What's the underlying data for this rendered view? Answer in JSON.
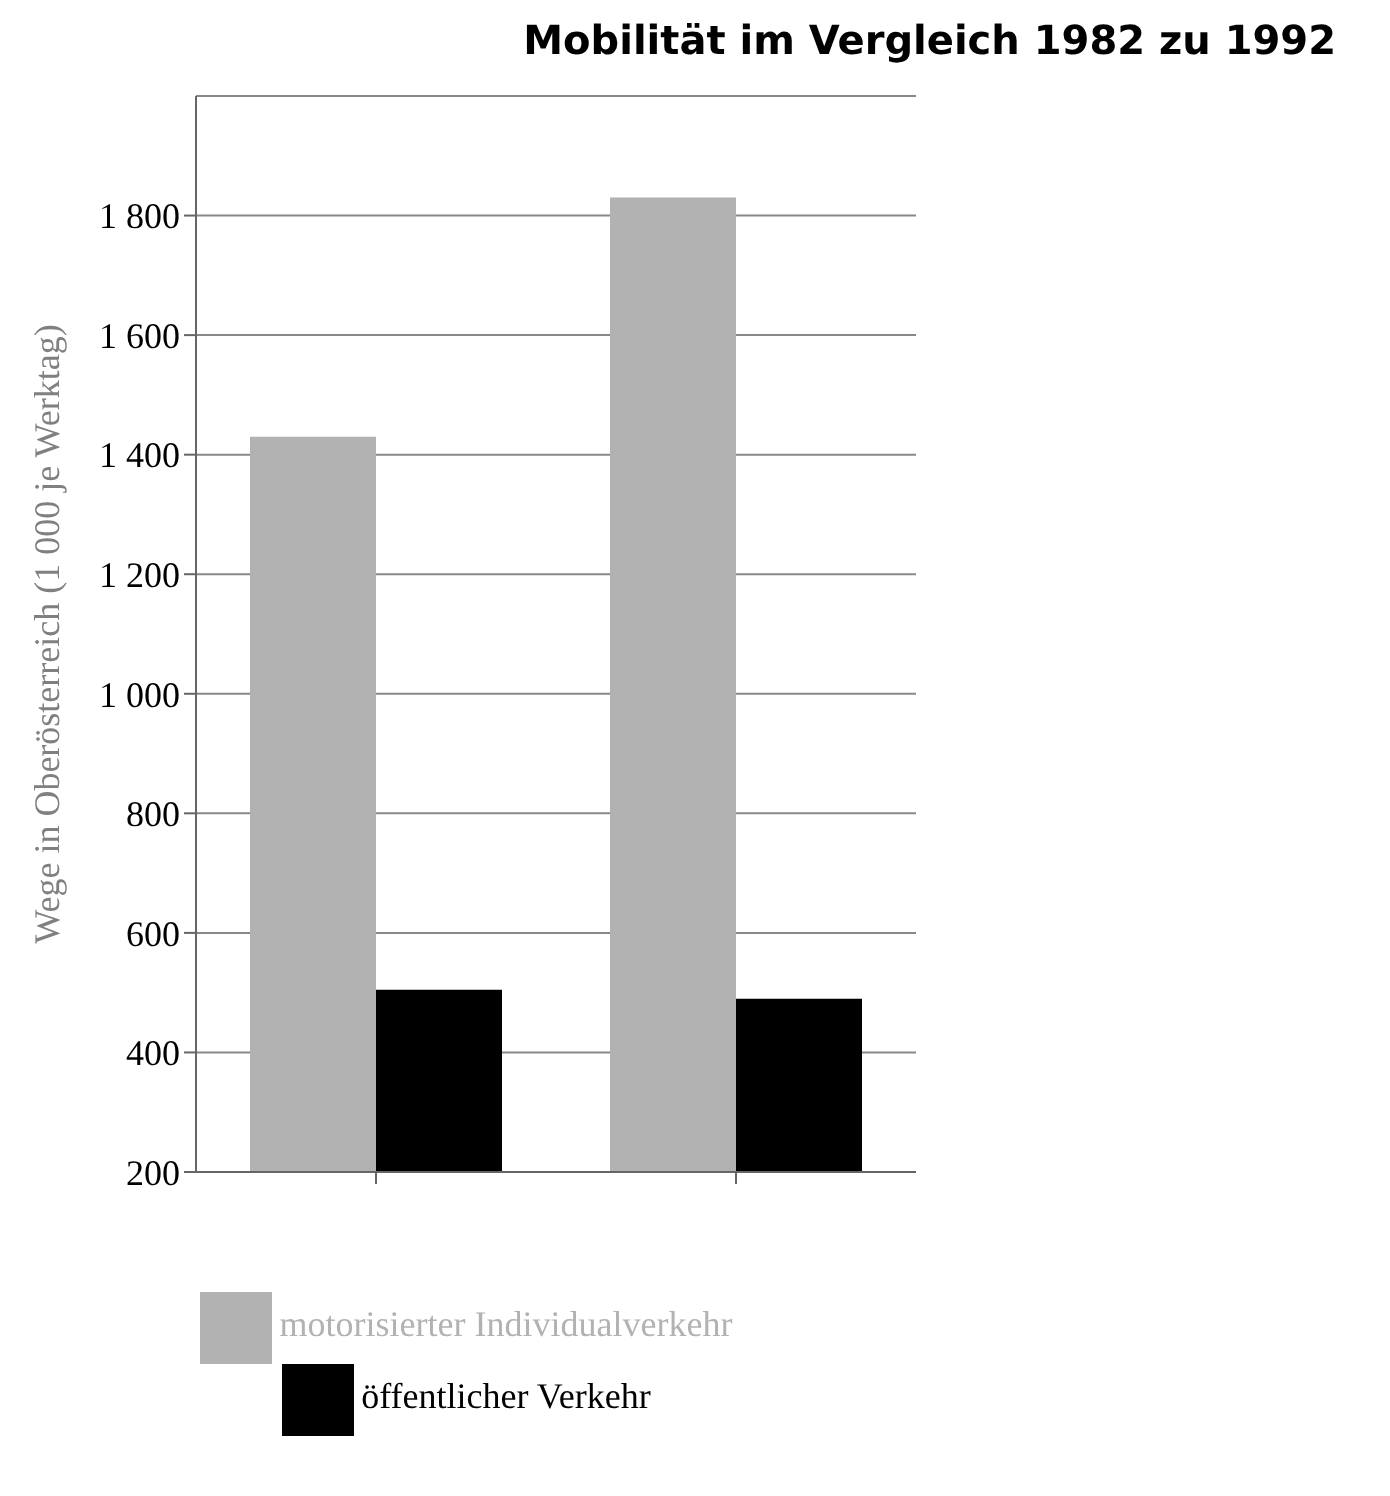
{
  "chart_data": {
    "type": "bar",
    "title": "Mobilität im Vergleich 1982 zu 1992",
    "ylabel": "Wege in Oberösterreich (1 000 je Werktag)",
    "categories": [
      null,
      null
    ],
    "series": [
      {
        "name": "motorisierter Individualverkehr",
        "color": "#b2b2b2",
        "values": [
          1430,
          1830
        ]
      },
      {
        "name": "öffentlicher Verkehr",
        "color": "#000000",
        "values": [
          505,
          490
        ]
      }
    ],
    "ylim": [
      200,
      2000
    ],
    "yticks": [
      {
        "value": 200,
        "label": "200"
      },
      {
        "value": 400,
        "label": "400"
      },
      {
        "value": 600,
        "label": "600"
      },
      {
        "value": 800,
        "label": "800"
      },
      {
        "value": 1000,
        "label": "1 000"
      },
      {
        "value": 1200,
        "label": "1 200"
      },
      {
        "value": 1400,
        "label": "1 400"
      },
      {
        "value": 1600,
        "label": "1 600"
      },
      {
        "value": 1800,
        "label": "1 800"
      }
    ],
    "grid": "y",
    "legend": "bottom"
  }
}
